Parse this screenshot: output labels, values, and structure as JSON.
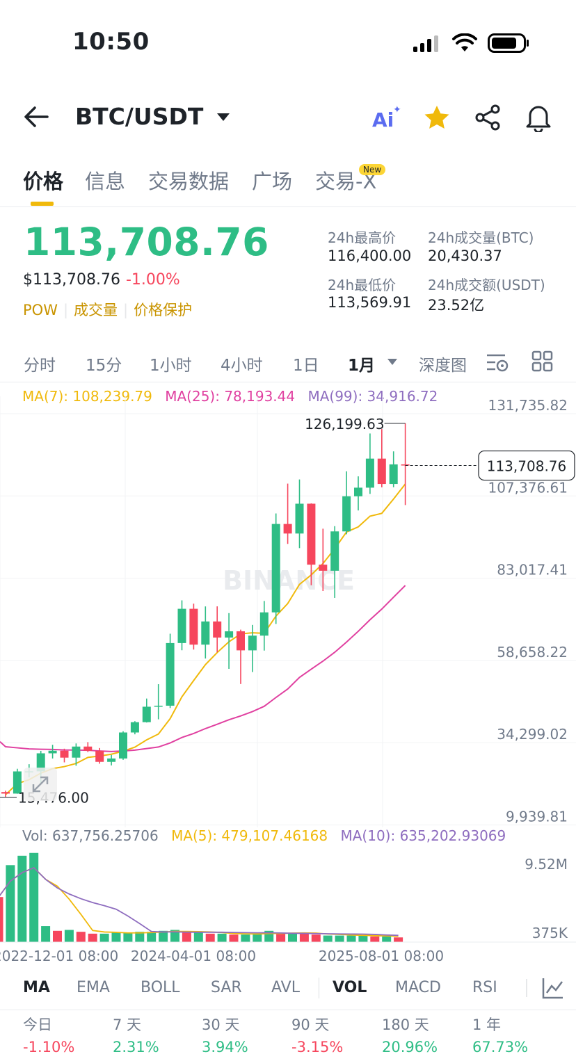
{
  "status_bar": {
    "time": "10:50"
  },
  "header": {
    "pair": "BTC/USDT",
    "ai_label": "Ai"
  },
  "tabs": [
    {
      "label": "价格",
      "active": true
    },
    {
      "label": "信息",
      "active": false
    },
    {
      "label": "交易数据",
      "active": false
    },
    {
      "label": "广场",
      "active": false
    },
    {
      "label": "交易-X",
      "active": false,
      "badge": "New"
    }
  ],
  "ticker": {
    "last_price": "113,708.76",
    "usd_price": "$113,708.76",
    "change_pct": "-1.00%",
    "tags": [
      "POW",
      "成交量",
      "价格保护"
    ],
    "high_24h_label": "24h最高价",
    "high_24h": "116,400.00",
    "volume_btc_label": "24h成交量(BTC)",
    "volume_btc": "20,430.37",
    "low_24h_label": "24h最低价",
    "low_24h": "113,569.91",
    "turnover_label": "24h成交额(USDT)",
    "turnover": "23.52亿"
  },
  "intervals": [
    {
      "label": "分时",
      "active": false
    },
    {
      "label": "15分",
      "active": false
    },
    {
      "label": "1小时",
      "active": false
    },
    {
      "label": "4小时",
      "active": false
    },
    {
      "label": "1日",
      "active": false
    },
    {
      "label": "1月",
      "active": true
    },
    {
      "label": "深度图",
      "active": false
    }
  ],
  "ma_legend": {
    "ma7": "MA(7): 108,239.79",
    "ma25": "MA(25): 78,193.44",
    "ma99": "MA(99): 34,916.72"
  },
  "colors": {
    "up": "#2ebd85",
    "down": "#f6465d",
    "ma7": "#f0b90b",
    "ma25": "#e040a0",
    "ma99": "#8e6dbf",
    "accent": "#f0b90b"
  },
  "chart_data": {
    "type": "candlestick",
    "interval": "1M",
    "y_axis_labels": [
      "131,735.82",
      "107,376.61",
      "83,017.41",
      "58,658.22",
      "34,299.02",
      "9,939.81"
    ],
    "x_axis_labels": [
      "2022-12-01 08:00",
      "2024-04-01 08:00",
      "2025-08-01 08:00"
    ],
    "current_price_label": "113,708.76",
    "high_marker": "126,199.63",
    "low_marker": "15,476.00",
    "watermark": "BINANCE",
    "candles": [
      {
        "o": 17000,
        "h": 17400,
        "l": 15476,
        "c": 16550
      },
      {
        "o": 16550,
        "h": 23900,
        "l": 16500,
        "c": 23120
      },
      {
        "o": 23120,
        "h": 25250,
        "l": 21350,
        "c": 23150
      },
      {
        "o": 23150,
        "h": 29200,
        "l": 19550,
        "c": 28480
      },
      {
        "o": 28480,
        "h": 31000,
        "l": 26950,
        "c": 29250
      },
      {
        "o": 29250,
        "h": 29850,
        "l": 25800,
        "c": 27200
      },
      {
        "o": 27200,
        "h": 31400,
        "l": 24800,
        "c": 30480
      },
      {
        "o": 30480,
        "h": 31800,
        "l": 28850,
        "c": 29230
      },
      {
        "o": 29230,
        "h": 30050,
        "l": 25400,
        "c": 25950
      },
      {
        "o": 25950,
        "h": 28000,
        "l": 24900,
        "c": 26950
      },
      {
        "o": 26950,
        "h": 35000,
        "l": 26550,
        "c": 34650
      },
      {
        "o": 34650,
        "h": 38000,
        "l": 34100,
        "c": 37700
      },
      {
        "o": 37700,
        "h": 44700,
        "l": 37600,
        "c": 42280
      },
      {
        "o": 42280,
        "h": 48950,
        "l": 38550,
        "c": 42580
      },
      {
        "o": 42580,
        "h": 63900,
        "l": 41900,
        "c": 61130
      },
      {
        "o": 61130,
        "h": 73780,
        "l": 59000,
        "c": 71280
      },
      {
        "o": 71280,
        "h": 72800,
        "l": 59200,
        "c": 60670
      },
      {
        "o": 60670,
        "h": 71980,
        "l": 56550,
        "c": 67530
      },
      {
        "o": 67530,
        "h": 72000,
        "l": 58400,
        "c": 62760
      },
      {
        "o": 62760,
        "h": 70000,
        "l": 53500,
        "c": 64620
      },
      {
        "o": 64620,
        "h": 65100,
        "l": 49000,
        "c": 58970
      },
      {
        "o": 58970,
        "h": 66500,
        "l": 52550,
        "c": 63330
      },
      {
        "o": 63330,
        "h": 73600,
        "l": 58900,
        "c": 70220
      },
      {
        "o": 70220,
        "h": 99500,
        "l": 66800,
        "c": 96400
      },
      {
        "o": 96400,
        "h": 108350,
        "l": 90500,
        "c": 93570
      },
      {
        "o": 93570,
        "h": 109580,
        "l": 89250,
        "c": 102400
      },
      {
        "o": 102400,
        "h": 102500,
        "l": 78250,
        "c": 84350
      },
      {
        "o": 84350,
        "h": 95000,
        "l": 76550,
        "c": 82550
      },
      {
        "o": 82550,
        "h": 95750,
        "l": 74500,
        "c": 94200
      },
      {
        "o": 94200,
        "h": 111980,
        "l": 93350,
        "c": 104600
      },
      {
        "o": 104600,
        "h": 110500,
        "l": 100400,
        "c": 107150
      },
      {
        "o": 107150,
        "h": 123200,
        "l": 105300,
        "c": 115750
      },
      {
        "o": 115750,
        "h": 124500,
        "l": 107250,
        "c": 108250
      },
      {
        "o": 108250,
        "h": 117900,
        "l": 107270,
        "c": 114050
      },
      {
        "o": 114050,
        "h": 126199.63,
        "l": 102000,
        "c": 113708.76
      }
    ],
    "volume_axis_labels": [
      "9.52M",
      "375K"
    ],
    "volume_legend": {
      "vol": "Vol: 637,756.25706",
      "ma5": "MA(5): 479,107.46168",
      "ma10": "MA(10): 635,202.93069"
    }
  },
  "indicators": [
    {
      "label": "MA",
      "active": true
    },
    {
      "label": "EMA",
      "active": false
    },
    {
      "label": "BOLL",
      "active": false
    },
    {
      "label": "SAR",
      "active": false
    },
    {
      "label": "AVL",
      "active": false
    },
    {
      "label": "VOL",
      "active": true
    },
    {
      "label": "MACD",
      "active": false
    },
    {
      "label": "RSI",
      "active": false
    }
  ],
  "performance": [
    {
      "label": "今日",
      "value": "-1.10%",
      "dir": "down"
    },
    {
      "label": "7 天",
      "value": "2.31%",
      "dir": "up"
    },
    {
      "label": "30 天",
      "value": "3.94%",
      "dir": "up"
    },
    {
      "label": "90 天",
      "value": "-3.15%",
      "dir": "down"
    },
    {
      "label": "180 天",
      "value": "20.96%",
      "dir": "up"
    },
    {
      "label": "1 年",
      "value": "67.73%",
      "dir": "up"
    }
  ]
}
